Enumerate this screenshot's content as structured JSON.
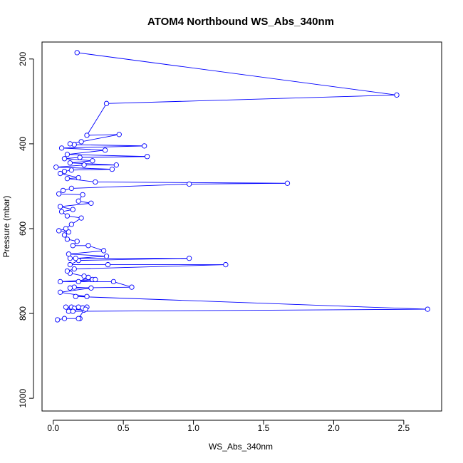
{
  "chart_data": {
    "type": "line",
    "title": "ATOM4 Northbound WS_Abs_340nm",
    "xlabel": "WS_Abs_340nm",
    "ylabel": "Pressure (mbar)",
    "xlim": [
      -0.08,
      2.77
    ],
    "ylim": [
      1030,
      160
    ],
    "y_reversed": true,
    "x_ticks": [
      0.0,
      0.5,
      1.0,
      1.5,
      2.0,
      2.5
    ],
    "x_tick_labels": [
      "0.0",
      "0.5",
      "1.0",
      "1.5",
      "2.0",
      "2.5"
    ],
    "y_ticks": [
      200,
      400,
      600,
      800,
      1000
    ],
    "y_tick_labels": [
      "200",
      "400",
      "600",
      "800",
      "1000"
    ],
    "grid": false,
    "series": [
      {
        "color": "#0000ff",
        "marker": "open-circle",
        "points": [
          [
            0.03,
            815
          ],
          [
            0.08,
            812
          ],
          [
            0.19,
            812
          ],
          [
            0.18,
            812
          ],
          [
            0.22,
            792
          ],
          [
            0.12,
            790
          ],
          [
            0.18,
            785
          ],
          [
            0.24,
            785
          ],
          [
            0.09,
            785
          ],
          [
            0.21,
            787
          ],
          [
            0.23,
            790
          ],
          [
            0.13,
            785
          ],
          [
            0.15,
            788
          ],
          [
            0.11,
            795
          ],
          [
            0.14,
            795
          ],
          [
            2.67,
            790
          ],
          [
            0.16,
            760
          ],
          [
            0.24,
            760
          ],
          [
            0.05,
            750
          ],
          [
            0.27,
            740
          ],
          [
            0.15,
            738
          ],
          [
            0.12,
            740
          ],
          [
            0.56,
            738
          ],
          [
            0.43,
            725
          ],
          [
            0.05,
            725
          ],
          [
            0.28,
            720
          ],
          [
            0.3,
            720
          ],
          [
            0.18,
            725
          ],
          [
            0.25,
            715
          ],
          [
            0.22,
            712
          ],
          [
            0.12,
            705
          ],
          [
            0.1,
            700
          ],
          [
            0.15,
            695
          ],
          [
            1.23,
            685
          ],
          [
            0.39,
            685
          ],
          [
            0.12,
            685
          ],
          [
            0.18,
            675
          ],
          [
            0.97,
            670
          ],
          [
            0.12,
            670
          ],
          [
            0.16,
            670
          ],
          [
            0.38,
            665
          ],
          [
            0.11,
            660
          ],
          [
            0.36,
            652
          ],
          [
            0.25,
            640
          ],
          [
            0.14,
            640
          ],
          [
            0.17,
            630
          ],
          [
            0.1,
            625
          ],
          [
            0.08,
            615
          ],
          [
            0.11,
            608
          ],
          [
            0.04,
            605
          ],
          [
            0.09,
            600
          ],
          [
            0.13,
            590
          ],
          [
            0.2,
            575
          ],
          [
            0.1,
            570
          ],
          [
            0.06,
            560
          ],
          [
            0.14,
            555
          ],
          [
            0.05,
            548
          ],
          [
            0.27,
            540
          ],
          [
            0.18,
            535
          ],
          [
            0.21,
            520
          ],
          [
            0.04,
            518
          ],
          [
            0.07,
            510
          ],
          [
            0.13,
            505
          ],
          [
            0.97,
            495
          ],
          [
            1.67,
            493
          ],
          [
            0.3,
            490
          ],
          [
            0.1,
            482
          ],
          [
            0.18,
            480
          ],
          [
            0.05,
            470
          ],
          [
            0.08,
            465
          ],
          [
            0.13,
            462
          ],
          [
            0.42,
            460
          ],
          [
            0.02,
            455
          ],
          [
            0.22,
            450
          ],
          [
            0.45,
            450
          ],
          [
            0.12,
            445
          ],
          [
            0.28,
            440
          ],
          [
            0.08,
            435
          ],
          [
            0.19,
            432
          ],
          [
            0.67,
            430
          ],
          [
            0.1,
            425
          ],
          [
            0.37,
            415
          ],
          [
            0.06,
            410
          ],
          [
            0.65,
            405
          ],
          [
            0.15,
            402
          ],
          [
            0.12,
            400
          ],
          [
            0.2,
            395
          ],
          [
            0.47,
            378
          ],
          [
            0.24,
            380
          ],
          [
            0.38,
            305
          ],
          [
            2.45,
            285
          ],
          [
            0.17,
            185
          ]
        ]
      }
    ]
  }
}
